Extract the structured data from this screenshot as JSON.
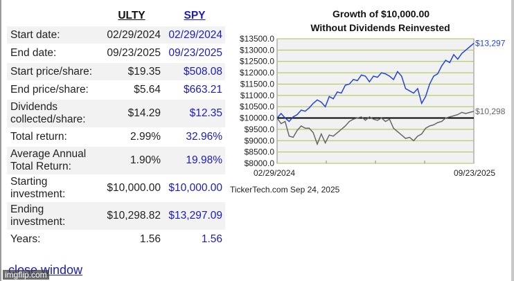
{
  "table": {
    "headers": {
      "col1": "ULTY",
      "col2": "SPY"
    },
    "rows": [
      {
        "label": "Start date:",
        "v1": "02/29/2024",
        "v2": "02/29/2024"
      },
      {
        "label": "End date:",
        "v1": "09/23/2025",
        "v2": "09/23/2025"
      },
      {
        "label": "Start price/share:",
        "v1": "$19.35",
        "v2": "$508.08"
      },
      {
        "label": "End price/share:",
        "v1": "$5.64",
        "v2": "$663.21"
      },
      {
        "label": "Dividends collected/share:",
        "v1": "$14.29",
        "v2": "$12.35"
      },
      {
        "label": "Total return:",
        "v1": "2.99%",
        "v2": "32.96%"
      },
      {
        "label": "Average Annual Total Return:",
        "v1": "1.90%",
        "v2": "19.98%"
      },
      {
        "label": "Starting investment:",
        "v1": "$10,000.00",
        "v2": "$10,000.00"
      },
      {
        "label": "Ending investment:",
        "v1": "$10,298.82",
        "v2": "$13,297.09"
      },
      {
        "label": "Years:",
        "v1": "1.56",
        "v2": "1.56"
      }
    ]
  },
  "links": {
    "close": "close window"
  },
  "watermark": "imgflip.com",
  "chart_data": {
    "type": "line",
    "title_line1": "Growth of $10,000.00",
    "title_line2": "Without Dividends Reinvested",
    "x_start_label": "02/29/2024",
    "x_end_label": "09/23/2025",
    "y_ticks": [
      "$8000.0",
      "$8500.0",
      "$9000.0",
      "$9500.0",
      "$10000.0",
      "$10500.0",
      "$11000.0",
      "$11500.0",
      "$12000.0",
      "$12500.0",
      "$13000.0",
      "$13500.0"
    ],
    "ylim": [
      8000,
      13500
    ],
    "baseline": 10000,
    "footer": "TickerTech.com  Sep 24, 2025",
    "series": [
      {
        "name": "SPY",
        "color": "#2244dd",
        "end_label": "$13,297",
        "values": [
          10000,
          10200,
          10000,
          9850,
          10050,
          10150,
          10350,
          10300,
          10450,
          10650,
          10800,
          10700,
          10500,
          10950,
          10850,
          11150,
          11100,
          11450,
          11500,
          11700,
          11650,
          11900,
          11850,
          11600,
          11850,
          11800,
          12000,
          11950,
          11850,
          11700,
          12050,
          11850,
          11300,
          11200,
          11100,
          11300,
          10650,
          10950,
          11500,
          11850,
          11950,
          12300,
          12550,
          12450,
          12800,
          12600,
          12850,
          13000,
          13150,
          13297
        ]
      },
      {
        "name": "ULTY",
        "color": "#666666",
        "end_label": "$10,298",
        "values": [
          10000,
          9750,
          9850,
          9200,
          9150,
          9450,
          9650,
          9550,
          9550,
          9350,
          8850,
          9300,
          8900,
          9250,
          9200,
          9350,
          9500,
          9650,
          9850,
          9950,
          10000,
          10050,
          9900,
          10050,
          9950,
          9900,
          10000,
          9850,
          9950,
          9550,
          9400,
          9250,
          9100,
          9150,
          9000,
          9200,
          9300,
          9550,
          9650,
          9700,
          9800,
          9850,
          10000,
          10050,
          10100,
          10150,
          10250,
          10200,
          10250,
          10298
        ]
      }
    ]
  }
}
